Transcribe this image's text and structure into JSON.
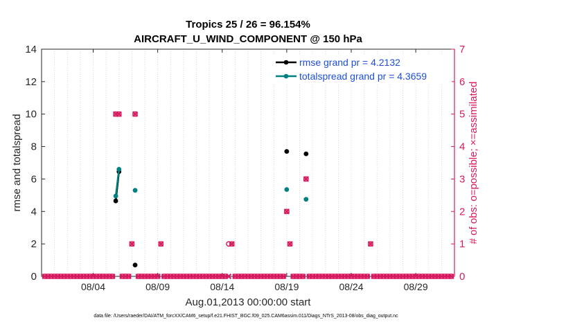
{
  "chart_data": {
    "type": "line",
    "title": "Tropics 25 / 26 = 96.154%",
    "subtitle": "AIRCRAFT_U_WIND_COMPONENT @ 150 hPa",
    "xlabel": "Aug.01,2013 00:00:00 start",
    "ylabel_left": "rmse and totalspread",
    "ylabel_right": "# of obs: o=possible; ×=assimilated",
    "footer": "data file: /Users/raeder/DAI/ATM_forcXX/CAM6_setup/f.e21.FHIST_BGC.f09_025.CAM6assim.011/Diags_NTrS_2013-08/obs_diag_output.nc",
    "xlim": [
      0,
      32
    ],
    "ylim_left": [
      0,
      14
    ],
    "ylim_right": [
      0,
      7
    ],
    "x_ticks": [
      {
        "x": 4,
        "label": "08/04"
      },
      {
        "x": 9,
        "label": "08/09"
      },
      {
        "x": 14,
        "label": "08/14"
      },
      {
        "x": 19,
        "label": "08/19"
      },
      {
        "x": 24,
        "label": "08/24"
      },
      {
        "x": 29,
        "label": "08/29"
      }
    ],
    "y_ticks_left": [
      "0",
      "2",
      "4",
      "6",
      "8",
      "10",
      "12",
      "14"
    ],
    "y_ticks_right": [
      "0",
      "1",
      "2",
      "3",
      "4",
      "5",
      "6",
      "7"
    ],
    "colors": {
      "rmse": "#000000",
      "spread": "#008080",
      "obs": "#d81b60",
      "right_axis": "#d81b60",
      "legend_text": "#1f4fd8"
    },
    "series": [
      {
        "name": "rmse grand pr = 4.2132",
        "key": "rmse",
        "points": [
          [
            5.75,
            4.65
          ],
          [
            6.0,
            6.45
          ],
          [
            7.25,
            0.7
          ],
          [
            19.0,
            7.7
          ],
          [
            20.5,
            7.55
          ]
        ],
        "segments": [
          [
            0,
            1
          ]
        ]
      },
      {
        "name": "totalspread grand pr = 4.3659",
        "key": "spread",
        "points": [
          [
            5.75,
            4.95
          ],
          [
            6.0,
            6.6
          ],
          [
            7.25,
            5.3
          ],
          [
            19.0,
            5.35
          ],
          [
            20.5,
            4.75
          ]
        ],
        "segments": [
          [
            0,
            1
          ]
        ]
      }
    ],
    "obs_possible": [
      [
        0.25,
        0
      ],
      [
        0.5,
        0
      ],
      [
        0.75,
        0
      ],
      [
        1.0,
        0
      ],
      [
        1.25,
        0
      ],
      [
        1.5,
        0
      ],
      [
        1.75,
        0
      ],
      [
        2.0,
        0
      ],
      [
        2.25,
        0
      ],
      [
        2.5,
        0
      ],
      [
        2.75,
        0
      ],
      [
        3.0,
        0
      ],
      [
        3.25,
        0
      ],
      [
        3.5,
        0
      ],
      [
        3.75,
        0
      ],
      [
        4.0,
        0
      ],
      [
        4.25,
        0
      ],
      [
        4.5,
        0
      ],
      [
        4.75,
        0
      ],
      [
        5.0,
        0
      ],
      [
        5.25,
        0
      ],
      [
        5.5,
        0
      ],
      [
        5.75,
        5
      ],
      [
        6.0,
        5
      ],
      [
        6.25,
        0
      ],
      [
        6.5,
        0
      ],
      [
        6.75,
        0
      ],
      [
        7.0,
        1
      ],
      [
        7.25,
        5
      ],
      [
        7.5,
        0
      ],
      [
        7.75,
        0
      ],
      [
        8.0,
        0
      ],
      [
        8.25,
        0
      ],
      [
        8.5,
        0
      ],
      [
        8.75,
        0
      ],
      [
        9.0,
        0
      ],
      [
        9.25,
        1
      ],
      [
        9.5,
        0
      ],
      [
        9.75,
        0
      ],
      [
        10.0,
        0
      ],
      [
        10.25,
        0
      ],
      [
        10.5,
        0
      ],
      [
        10.75,
        0
      ],
      [
        11.0,
        0
      ],
      [
        11.25,
        0
      ],
      [
        11.5,
        0
      ],
      [
        11.75,
        0
      ],
      [
        12.0,
        0
      ],
      [
        12.25,
        0
      ],
      [
        12.5,
        0
      ],
      [
        12.75,
        0
      ],
      [
        13.0,
        0
      ],
      [
        13.25,
        0
      ],
      [
        13.5,
        0
      ],
      [
        13.75,
        0
      ],
      [
        14.0,
        0
      ],
      [
        14.25,
        0
      ],
      [
        14.5,
        1
      ],
      [
        14.75,
        1
      ],
      [
        15.0,
        0
      ],
      [
        15.25,
        0
      ],
      [
        15.5,
        0
      ],
      [
        15.75,
        0
      ],
      [
        16.0,
        0
      ],
      [
        16.25,
        0
      ],
      [
        16.5,
        0
      ],
      [
        16.75,
        0
      ],
      [
        17.0,
        0
      ],
      [
        17.25,
        0
      ],
      [
        17.5,
        0
      ],
      [
        17.75,
        0
      ],
      [
        18.0,
        0
      ],
      [
        18.25,
        0
      ],
      [
        18.5,
        0
      ],
      [
        18.75,
        0
      ],
      [
        19.0,
        2
      ],
      [
        19.25,
        1
      ],
      [
        19.5,
        0
      ],
      [
        19.75,
        0
      ],
      [
        20.0,
        0
      ],
      [
        20.25,
        0
      ],
      [
        20.5,
        3
      ],
      [
        20.75,
        0
      ],
      [
        21.0,
        0
      ],
      [
        21.25,
        0
      ],
      [
        21.5,
        0
      ],
      [
        21.75,
        0
      ],
      [
        22.0,
        0
      ],
      [
        22.25,
        0
      ],
      [
        22.5,
        0
      ],
      [
        22.75,
        0
      ],
      [
        23.0,
        0
      ],
      [
        23.25,
        0
      ],
      [
        23.5,
        0
      ],
      [
        23.75,
        0
      ],
      [
        24.0,
        0
      ],
      [
        24.25,
        0
      ],
      [
        24.5,
        0
      ],
      [
        24.75,
        0
      ],
      [
        25.0,
        0
      ],
      [
        25.25,
        0
      ],
      [
        25.5,
        1
      ],
      [
        25.75,
        0
      ],
      [
        26.0,
        0
      ],
      [
        26.25,
        0
      ],
      [
        26.5,
        0
      ],
      [
        26.75,
        0
      ],
      [
        27.0,
        0
      ],
      [
        27.25,
        0
      ],
      [
        27.5,
        0
      ],
      [
        27.75,
        0
      ],
      [
        28.0,
        0
      ],
      [
        28.25,
        0
      ],
      [
        28.5,
        0
      ],
      [
        28.75,
        0
      ],
      [
        29.0,
        0
      ],
      [
        29.25,
        0
      ],
      [
        29.5,
        0
      ],
      [
        29.75,
        0
      ],
      [
        30.0,
        0
      ],
      [
        30.25,
        0
      ],
      [
        30.5,
        0
      ],
      [
        30.75,
        0
      ],
      [
        31.0,
        0
      ],
      [
        31.25,
        0
      ],
      [
        31.5,
        0
      ],
      [
        31.75,
        0
      ]
    ],
    "obs_assimilated": [
      [
        0.25,
        0
      ],
      [
        0.5,
        0
      ],
      [
        0.75,
        0
      ],
      [
        1.0,
        0
      ],
      [
        1.25,
        0
      ],
      [
        1.5,
        0
      ],
      [
        1.75,
        0
      ],
      [
        2.0,
        0
      ],
      [
        2.25,
        0
      ],
      [
        2.5,
        0
      ],
      [
        2.75,
        0
      ],
      [
        3.0,
        0
      ],
      [
        3.25,
        0
      ],
      [
        3.5,
        0
      ],
      [
        3.75,
        0
      ],
      [
        4.0,
        0
      ],
      [
        4.25,
        0
      ],
      [
        4.5,
        0
      ],
      [
        4.75,
        0
      ],
      [
        5.0,
        0
      ],
      [
        5.25,
        0
      ],
      [
        5.5,
        0
      ],
      [
        5.75,
        5
      ],
      [
        6.0,
        5
      ],
      [
        6.25,
        0
      ],
      [
        6.5,
        0
      ],
      [
        6.75,
        0
      ],
      [
        7.0,
        1
      ],
      [
        7.25,
        5
      ],
      [
        7.5,
        0
      ],
      [
        7.75,
        0
      ],
      [
        8.0,
        0
      ],
      [
        8.25,
        0
      ],
      [
        8.5,
        0
      ],
      [
        8.75,
        0
      ],
      [
        9.0,
        0
      ],
      [
        9.25,
        1
      ],
      [
        9.5,
        0
      ],
      [
        9.75,
        0
      ],
      [
        10.0,
        0
      ],
      [
        10.25,
        0
      ],
      [
        10.5,
        0
      ],
      [
        10.75,
        0
      ],
      [
        11.0,
        0
      ],
      [
        11.25,
        0
      ],
      [
        11.5,
        0
      ],
      [
        11.75,
        0
      ],
      [
        12.0,
        0
      ],
      [
        12.25,
        0
      ],
      [
        12.5,
        0
      ],
      [
        12.75,
        0
      ],
      [
        13.0,
        0
      ],
      [
        13.25,
        0
      ],
      [
        13.5,
        0
      ],
      [
        13.75,
        0
      ],
      [
        14.0,
        0
      ],
      [
        14.25,
        0
      ],
      [
        14.5,
        0
      ],
      [
        14.75,
        1
      ],
      [
        15.0,
        0
      ],
      [
        15.25,
        0
      ],
      [
        15.5,
        0
      ],
      [
        15.75,
        0
      ],
      [
        16.0,
        0
      ],
      [
        16.25,
        0
      ],
      [
        16.5,
        0
      ],
      [
        16.75,
        0
      ],
      [
        17.0,
        0
      ],
      [
        17.25,
        0
      ],
      [
        17.5,
        0
      ],
      [
        17.75,
        0
      ],
      [
        18.0,
        0
      ],
      [
        18.25,
        0
      ],
      [
        18.5,
        0
      ],
      [
        18.75,
        0
      ],
      [
        19.0,
        2
      ],
      [
        19.25,
        1
      ],
      [
        19.5,
        0
      ],
      [
        19.75,
        0
      ],
      [
        20.0,
        0
      ],
      [
        20.25,
        0
      ],
      [
        20.5,
        3
      ],
      [
        20.75,
        0
      ],
      [
        21.0,
        0
      ],
      [
        21.25,
        0
      ],
      [
        21.5,
        0
      ],
      [
        21.75,
        0
      ],
      [
        22.0,
        0
      ],
      [
        22.25,
        0
      ],
      [
        22.5,
        0
      ],
      [
        22.75,
        0
      ],
      [
        23.0,
        0
      ],
      [
        23.25,
        0
      ],
      [
        23.5,
        0
      ],
      [
        23.75,
        0
      ],
      [
        24.0,
        0
      ],
      [
        24.25,
        0
      ],
      [
        24.5,
        0
      ],
      [
        24.75,
        0
      ],
      [
        25.0,
        0
      ],
      [
        25.25,
        0
      ],
      [
        25.5,
        1
      ],
      [
        25.75,
        0
      ],
      [
        26.0,
        0
      ],
      [
        26.25,
        0
      ],
      [
        26.5,
        0
      ],
      [
        26.75,
        0
      ],
      [
        27.0,
        0
      ],
      [
        27.25,
        0
      ],
      [
        27.5,
        0
      ],
      [
        27.75,
        0
      ],
      [
        28.0,
        0
      ],
      [
        28.25,
        0
      ],
      [
        28.5,
        0
      ],
      [
        28.75,
        0
      ],
      [
        29.0,
        0
      ],
      [
        29.25,
        0
      ],
      [
        29.5,
        0
      ],
      [
        29.75,
        0
      ],
      [
        30.0,
        0
      ],
      [
        30.25,
        0
      ],
      [
        30.5,
        0
      ],
      [
        30.75,
        0
      ],
      [
        31.0,
        0
      ],
      [
        31.25,
        0
      ],
      [
        31.5,
        0
      ],
      [
        31.75,
        0
      ]
    ]
  }
}
